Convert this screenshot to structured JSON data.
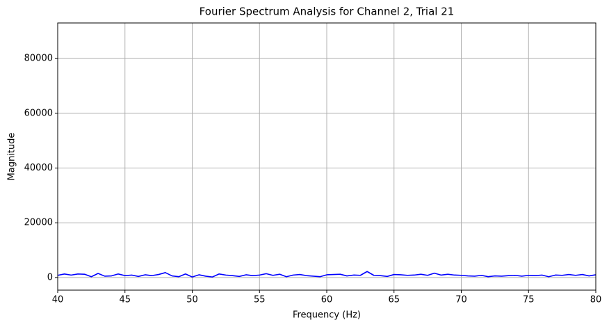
{
  "chart_data": {
    "type": "line",
    "title": "Fourier Spectrum Analysis for Channel 2, Trial 21",
    "x_label": "Frequency (Hz)",
    "y_label": "Magnitude",
    "x": [
      40,
      40.5,
      41,
      41.5,
      42,
      42.5,
      43,
      43.5,
      44,
      44.5,
      45,
      45.5,
      46,
      46.5,
      47,
      47.5,
      48,
      48.5,
      49,
      49.5,
      50,
      50.5,
      51,
      51.5,
      52,
      52.5,
      53,
      53.5,
      54,
      54.5,
      55,
      55.5,
      56,
      56.5,
      57,
      57.5,
      58,
      58.5,
      59,
      59.5,
      60,
      60.5,
      61,
      61.5,
      62,
      62.5,
      63,
      63.5,
      64,
      64.5,
      65,
      65.5,
      66,
      66.5,
      67,
      67.5,
      68,
      68.5,
      69,
      69.5,
      70,
      70.5,
      71,
      71.5,
      72,
      72.5,
      73,
      73.5,
      74,
      74.5,
      75,
      75.5,
      76,
      76.5,
      77,
      77.5,
      78,
      78.5,
      79,
      79.5,
      80
    ],
    "series": [
      {
        "name": "Magnitude",
        "color": "#0000ff",
        "values": [
          800,
          1300,
          900,
          1300,
          1200,
          300,
          1500,
          500,
          600,
          1300,
          700,
          900,
          400,
          1000,
          700,
          1100,
          1800,
          600,
          300,
          1300,
          200,
          1000,
          500,
          200,
          1300,
          900,
          700,
          400,
          1000,
          700,
          900,
          1400,
          800,
          1200,
          300,
          900,
          1100,
          700,
          500,
          300,
          1000,
          1100,
          1200,
          600,
          900,
          800,
          2200,
          800,
          700,
          400,
          1100,
          1000,
          800,
          900,
          1200,
          800,
          1600,
          900,
          1200,
          900,
          800,
          600,
          500,
          800,
          300,
          600,
          500,
          700,
          800,
          500,
          800,
          700,
          900,
          300,
          900,
          800,
          1100,
          800,
          1100,
          600,
          1000
        ]
      }
    ],
    "xlim": [
      40,
      80
    ],
    "ylim": [
      -4600,
      93000
    ],
    "xticks": [
      40,
      45,
      50,
      55,
      60,
      65,
      70,
      75,
      80
    ],
    "yticks": [
      0,
      20000,
      40000,
      60000,
      80000
    ],
    "grid": true
  }
}
